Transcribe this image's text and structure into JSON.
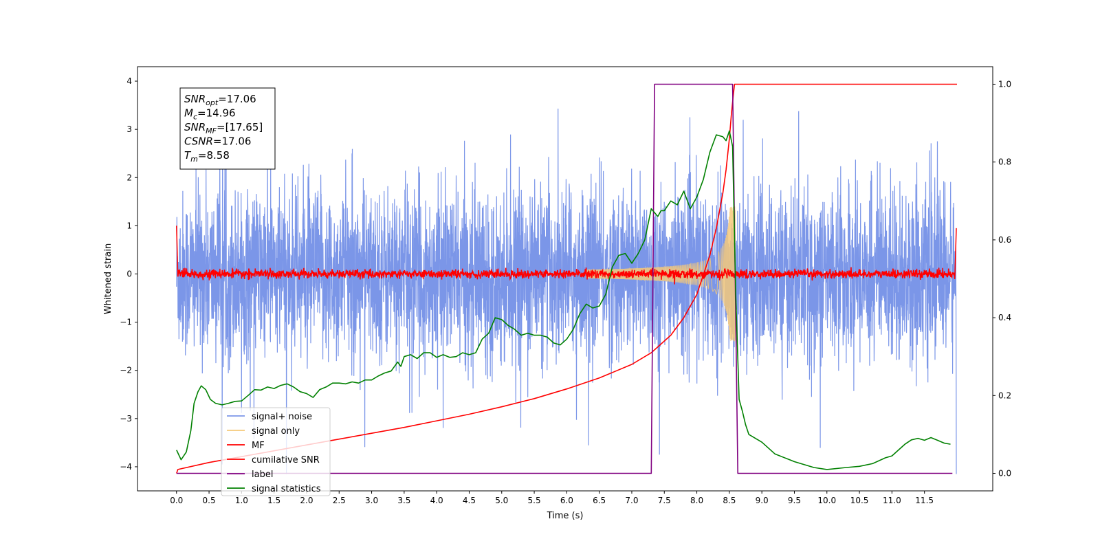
{
  "chart_data": {
    "type": "line",
    "xlabel": "Time (s)",
    "ylabel": "Whitened strain",
    "xlim": [
      -0.6,
      12.55
    ],
    "ylim": [
      -4.5,
      4.3
    ],
    "y2lim": [
      -0.045,
      1.045
    ],
    "x_ticks": [
      0.0,
      0.5,
      1.0,
      1.5,
      2.0,
      2.5,
      3.0,
      3.5,
      4.0,
      4.5,
      5.0,
      5.5,
      6.0,
      6.5,
      7.0,
      7.5,
      8.0,
      8.5,
      9.0,
      9.5,
      10.0,
      10.5,
      11.0,
      11.5
    ],
    "x_tick_labels": [
      "0.0",
      "0.5",
      "1.0",
      "1.5",
      "2.0",
      "2.5",
      "3.0",
      "3.5",
      "4.0",
      "4.5",
      "5.0",
      "5.5",
      "6.0",
      "6.5",
      "7.0",
      "7.5",
      "8.0",
      "8.5",
      "9.0",
      "9.5",
      "10.0",
      "10.5",
      "11.0",
      "11.5"
    ],
    "y_ticks": [
      -4,
      -3,
      -2,
      -1,
      0,
      1,
      2,
      3,
      4
    ],
    "y_tick_labels": [
      "−4",
      "−3",
      "−2",
      "−1",
      "0",
      "1",
      "2",
      "3",
      "4"
    ],
    "y2_ticks": [
      0.0,
      0.2,
      0.4,
      0.6,
      0.8,
      1.0
    ],
    "y2_tick_labels": [
      "0.0",
      "0.2",
      "0.4",
      "0.6",
      "0.8",
      "1.0"
    ],
    "grid": false,
    "legend_placement": "lower-left",
    "annotation": {
      "lines": [
        {
          "main": "SNR",
          "sub": "opt",
          "rest": "=17.06"
        },
        {
          "main": "M",
          "sub": "c",
          "rest": "=14.96"
        },
        {
          "main": "SNR",
          "sub": "MF",
          "rest": "=[17.65]"
        },
        {
          "main": "CSNR",
          "sub": "",
          "rest": "=17.06"
        },
        {
          "main": "T",
          "sub": "m",
          "rest": "=8.58"
        }
      ]
    },
    "series": [
      {
        "name": "signal+ noise",
        "color": "#7b96e8",
        "axis": "left",
        "description_values": {
          "x_start": 0.0,
          "x_end": 11.99,
          "noise_amplitude_typical": 1.5,
          "noise_max": 3.43,
          "noise_min": -4.15
        }
      },
      {
        "name": "signal only",
        "color": "#f5c97a",
        "axis": "left",
        "description_values": {
          "chirp_start": 6.5,
          "chirp_peak_time": 8.55,
          "peak_amplitude": 1.4
        }
      },
      {
        "name": "MF",
        "color": "#ff0000",
        "axis": "left",
        "description_values": {
          "baseline": 0.0,
          "spread": 0.15,
          "start_value": 1.0,
          "end_value": 0.95
        }
      },
      {
        "name": "cumilative SNR",
        "color": "#ff0000",
        "axis": "right",
        "x": [
          0.0,
          0.02,
          0.5,
          1.0,
          1.5,
          2.0,
          2.5,
          3.0,
          3.5,
          4.0,
          4.5,
          5.0,
          5.5,
          6.0,
          6.5,
          7.0,
          7.3,
          7.6,
          7.8,
          8.0,
          8.2,
          8.3,
          8.4,
          8.45,
          8.5,
          8.53,
          8.56,
          8.58,
          12.0
        ],
        "values": [
          0.0,
          0.01,
          0.028,
          0.043,
          0.058,
          0.073,
          0.088,
          0.103,
          0.118,
          0.135,
          0.152,
          0.171,
          0.192,
          0.217,
          0.245,
          0.28,
          0.31,
          0.355,
          0.4,
          0.46,
          0.56,
          0.63,
          0.72,
          0.78,
          0.86,
          0.92,
          0.97,
          1.0,
          1.0
        ]
      },
      {
        "name": "label",
        "color": "#800080",
        "axis": "right",
        "x": [
          0.0,
          7.3,
          7.35,
          8.55,
          8.63,
          11.93
        ],
        "values": [
          0.0,
          0.0,
          1.0,
          1.0,
          0.0,
          0.0
        ]
      },
      {
        "name": "signal statistics",
        "color": "#008000",
        "axis": "right",
        "x": [
          0.0,
          0.07,
          0.15,
          0.22,
          0.27,
          0.33,
          0.38,
          0.45,
          0.52,
          0.6,
          0.7,
          0.8,
          0.9,
          1.0,
          1.1,
          1.2,
          1.3,
          1.4,
          1.5,
          1.6,
          1.7,
          1.8,
          1.9,
          2.0,
          2.1,
          2.2,
          2.3,
          2.4,
          2.5,
          2.6,
          2.7,
          2.8,
          2.9,
          3.0,
          3.1,
          3.2,
          3.3,
          3.4,
          3.45,
          3.5,
          3.6,
          3.7,
          3.8,
          3.9,
          4.0,
          4.1,
          4.2,
          4.3,
          4.4,
          4.5,
          4.6,
          4.7,
          4.8,
          4.9,
          5.0,
          5.1,
          5.2,
          5.3,
          5.4,
          5.5,
          5.6,
          5.7,
          5.8,
          5.9,
          6.0,
          6.1,
          6.2,
          6.3,
          6.4,
          6.5,
          6.6,
          6.7,
          6.8,
          6.9,
          7.0,
          7.1,
          7.2,
          7.3,
          7.35,
          7.4,
          7.45,
          7.5,
          7.6,
          7.7,
          7.8,
          7.9,
          8.0,
          8.1,
          8.2,
          8.3,
          8.4,
          8.45,
          8.5,
          8.55,
          8.6,
          8.65,
          8.7,
          8.75,
          8.8,
          9.0,
          9.2,
          9.5,
          9.8,
          10.0,
          10.3,
          10.5,
          10.7,
          10.9,
          11.0,
          11.1,
          11.2,
          11.3,
          11.4,
          11.5,
          11.6,
          11.7,
          11.8,
          11.9
        ],
        "values": [
          0.06,
          0.035,
          0.055,
          0.11,
          0.18,
          0.21,
          0.225,
          0.215,
          0.19,
          0.18,
          0.176,
          0.18,
          0.185,
          0.186,
          0.2,
          0.215,
          0.214,
          0.222,
          0.218,
          0.226,
          0.23,
          0.222,
          0.21,
          0.205,
          0.195,
          0.215,
          0.222,
          0.232,
          0.232,
          0.23,
          0.235,
          0.232,
          0.24,
          0.24,
          0.25,
          0.258,
          0.263,
          0.286,
          0.275,
          0.3,
          0.305,
          0.295,
          0.31,
          0.31,
          0.298,
          0.305,
          0.298,
          0.3,
          0.31,
          0.305,
          0.31,
          0.345,
          0.36,
          0.4,
          0.395,
          0.38,
          0.37,
          0.355,
          0.36,
          0.355,
          0.355,
          0.35,
          0.335,
          0.33,
          0.345,
          0.37,
          0.41,
          0.435,
          0.425,
          0.43,
          0.46,
          0.53,
          0.56,
          0.565,
          0.54,
          0.565,
          0.6,
          0.68,
          0.67,
          0.66,
          0.675,
          0.675,
          0.7,
          0.69,
          0.725,
          0.68,
          0.71,
          0.755,
          0.825,
          0.87,
          0.865,
          0.855,
          0.88,
          0.84,
          0.45,
          0.19,
          0.16,
          0.125,
          0.1,
          0.08,
          0.05,
          0.03,
          0.015,
          0.01,
          0.015,
          0.018,
          0.025,
          0.04,
          0.045,
          0.06,
          0.075,
          0.086,
          0.09,
          0.085,
          0.092,
          0.085,
          0.078,
          0.075
        ]
      }
    ]
  }
}
